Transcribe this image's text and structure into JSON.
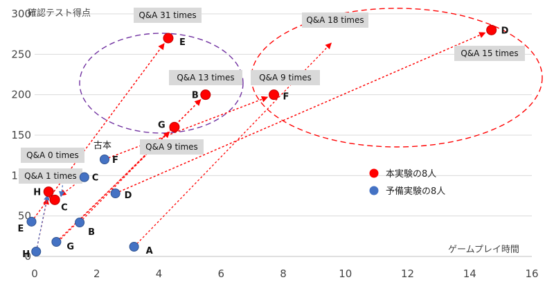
{
  "chart_data": {
    "type": "scatter",
    "title": "",
    "ylabel": "確認テスト得点",
    "xlabel": "ゲームプレイ時間",
    "xlim": [
      0,
      16
    ],
    "ylim": [
      0,
      300
    ],
    "xticks": [
      "0",
      "2",
      "4",
      "6",
      "8",
      "10",
      "12",
      "14",
      "16"
    ],
    "yticks": [
      "0",
      "50",
      "100",
      "150",
      "200",
      "250",
      "300"
    ],
    "grid": true,
    "legend_position": "right",
    "series": [
      {
        "name": "本実験の8人",
        "color": "#ff0000",
        "points": [
          {
            "id": "A",
            "label": "",
            "x": 3.2,
            "y": 12
          },
          {
            "id": "B",
            "label": "B",
            "x": 5.5,
            "y": 200
          },
          {
            "id": "C",
            "label": "C",
            "x": 0.65,
            "y": 70
          },
          {
            "id": "D",
            "label": "D",
            "x": 14.7,
            "y": 280
          },
          {
            "id": "E",
            "label": "E",
            "x": 4.3,
            "y": 270
          },
          {
            "id": "F",
            "label": "F",
            "x": 7.7,
            "y": 200
          },
          {
            "id": "G",
            "label": "G",
            "x": 4.5,
            "y": 160
          },
          {
            "id": "H",
            "label": "H",
            "x": 0.45,
            "y": 80
          }
        ]
      },
      {
        "name": "予備実験の8人",
        "color": "#4472c4",
        "points": [
          {
            "id": "A",
            "label": "A",
            "x": 3.2,
            "y": 12
          },
          {
            "id": "B",
            "label": "B",
            "x": 1.45,
            "y": 42
          },
          {
            "id": "C",
            "label": "C",
            "x": 1.6,
            "y": 98
          },
          {
            "id": "D",
            "label": "D",
            "x": 2.6,
            "y": 78
          },
          {
            "id": "E",
            "label": "E",
            "x": -0.1,
            "y": 43
          },
          {
            "id": "F",
            "label": "F",
            "x": 2.25,
            "y": 120
          },
          {
            "id": "G",
            "label": "G",
            "x": 0.7,
            "y": 18
          },
          {
            "id": "H",
            "label": "H",
            "x": 0.05,
            "y": 6
          }
        ]
      }
    ],
    "annotations": [
      {
        "text": "Q&A 31 times"
      },
      {
        "text": "Q&A 18 times"
      },
      {
        "text": "Q&A 13 times"
      },
      {
        "text": "Q&A 9 times"
      },
      {
        "text": "Q&A 15 times"
      },
      {
        "text": "Q&A 9 times"
      },
      {
        "text": "Q&A 0 times"
      },
      {
        "text": "Q&A 1 times"
      }
    ],
    "note": "古本"
  }
}
